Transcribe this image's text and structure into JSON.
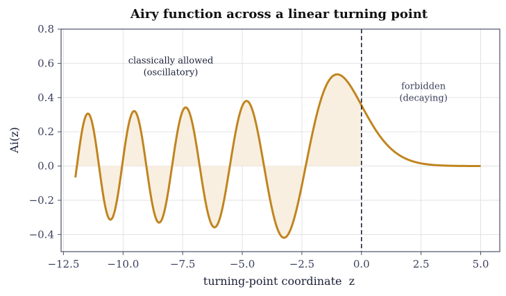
{
  "chart_data": {
    "type": "line",
    "title": "Airy function across a linear turning point",
    "xlabel": "turning-point coordinate  z",
    "ylabel": "Ai(z)",
    "xlim": [
      -12.6,
      5.8
    ],
    "ylim": [
      -0.5,
      0.8
    ],
    "x_ticks": [
      -12.5,
      -10.0,
      -7.5,
      -5.0,
      -2.5,
      0.0,
      2.5,
      5.0
    ],
    "x_tick_labels": [
      "−12.5",
      "−10.0",
      "−7.5",
      "−5.0",
      "−2.5",
      "0.0",
      "2.5",
      "5.0"
    ],
    "y_ticks": [
      -0.4,
      -0.2,
      0.0,
      0.2,
      0.4,
      0.6,
      0.8
    ],
    "y_tick_labels": [
      "−0.4",
      "−0.2",
      "0.0",
      "0.2",
      "0.4",
      "0.6",
      "0.8"
    ],
    "grid": true,
    "x_range": [
      -12,
      5
    ],
    "line_color": "#c0841f",
    "fill_color": "#f8efe1",
    "turning_point_x": 0.0,
    "turning_point_color": "#1a1f36",
    "annotations": [
      {
        "name": "allowed",
        "lines": [
          "classically allowed",
          "(oscillatory)"
        ],
        "x": -8.0,
        "y": 0.6,
        "color": "#1a1f36"
      },
      {
        "name": "forbidden",
        "lines": [
          "forbidden",
          "(decaying)"
        ],
        "x": 2.6,
        "y": 0.45,
        "color": "#3a3f5c"
      }
    ]
  }
}
